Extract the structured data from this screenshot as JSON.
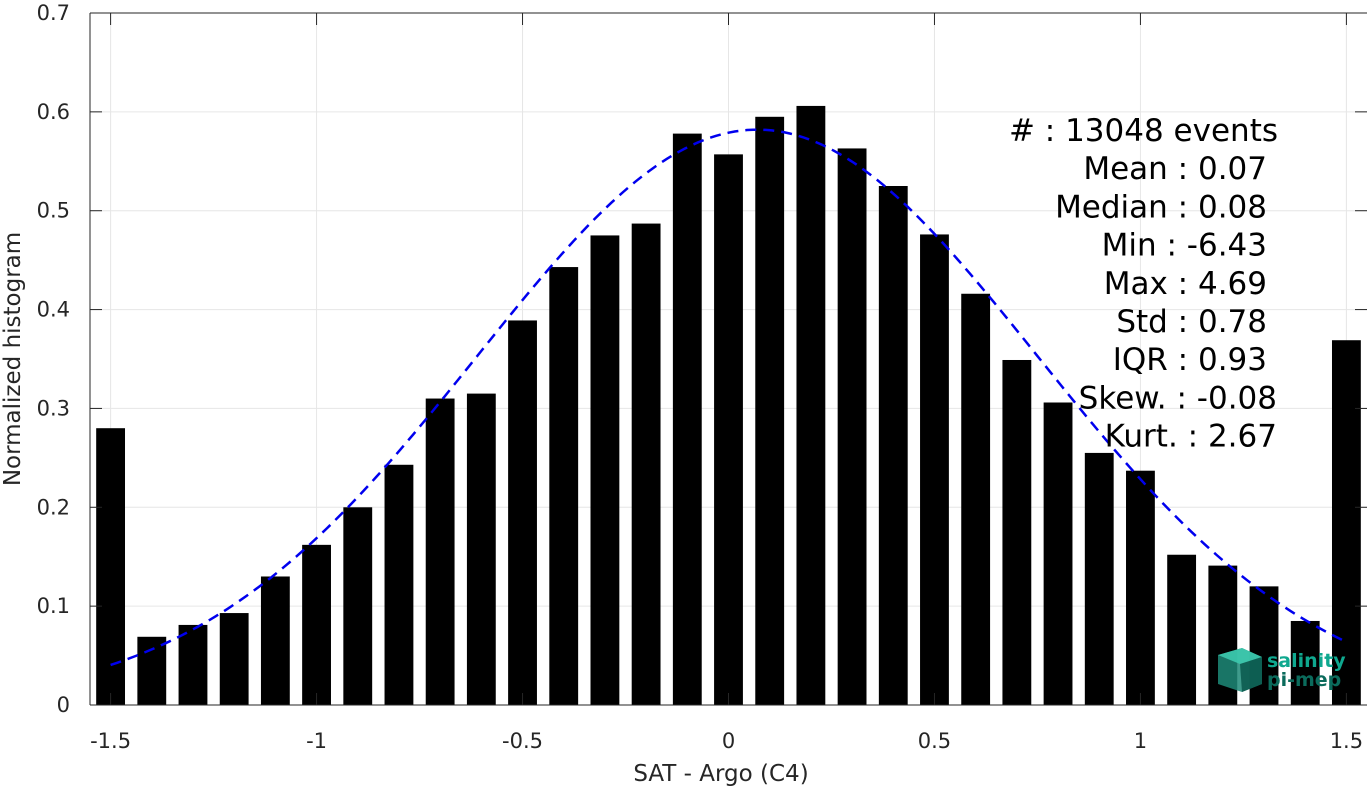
{
  "chart_data": {
    "type": "bar",
    "xlabel": "SAT - Argo (C4)",
    "ylabel": "Normalized histogram",
    "xlim": [
      -1.55,
      1.55
    ],
    "ylim": [
      0,
      0.7
    ],
    "x_ticks": [
      -1.5,
      -1,
      -0.5,
      0,
      0.5,
      1,
      1.5
    ],
    "x_tick_labels": [
      "-1.5",
      "-1",
      "-0.5",
      "0",
      "0.5",
      "1",
      "1.5"
    ],
    "y_ticks": [
      0,
      0.1,
      0.2,
      0.3,
      0.4,
      0.5,
      0.6,
      0.7
    ],
    "y_tick_labels": [
      "0",
      "0.1",
      "0.2",
      "0.3",
      "0.4",
      "0.5",
      "0.6",
      "0.7"
    ],
    "grid": true,
    "bar_color": "#000000",
    "bin_width": 0.1,
    "x": [
      -1.5,
      -1.4,
      -1.3,
      -1.2,
      -1.1,
      -1.0,
      -0.9,
      -0.8,
      -0.7,
      -0.6,
      -0.5,
      -0.4,
      -0.3,
      -0.2,
      -0.1,
      0.0,
      0.1,
      0.2,
      0.3,
      0.4,
      0.5,
      0.6,
      0.7,
      0.8,
      0.9,
      1.0,
      1.1,
      1.2,
      1.3,
      1.4,
      1.5
    ],
    "values": [
      0.28,
      0.069,
      0.081,
      0.093,
      0.13,
      0.162,
      0.2,
      0.243,
      0.31,
      0.315,
      0.389,
      0.443,
      0.475,
      0.487,
      0.578,
      0.557,
      0.595,
      0.606,
      0.563,
      0.525,
      0.476,
      0.416,
      0.349,
      0.306,
      0.255,
      0.237,
      0.152,
      0.141,
      0.12,
      0.085,
      0.369
    ],
    "fit": {
      "type": "gaussian",
      "style": "dashed",
      "color": "#0000ee",
      "mean": 0.07,
      "std": 0.68,
      "peak": 0.582,
      "x_range": [
        -1.5,
        1.5
      ]
    },
    "stats": [
      {
        "label": "#  : 13048 events"
      },
      {
        "label": "Mean : 0.07"
      },
      {
        "label": "Median : 0.08"
      },
      {
        "label": "Min : -6.43"
      },
      {
        "label": "Max : 4.69"
      },
      {
        "label": "Std : 0.78"
      },
      {
        "label": "IQR : 0.93"
      },
      {
        "label": "Skew. : -0.08"
      },
      {
        "label": "Kurt. : 2.67"
      }
    ]
  },
  "logo": {
    "line1": "salinity",
    "line2": "pi-mep",
    "color": "#0fa88f"
  }
}
